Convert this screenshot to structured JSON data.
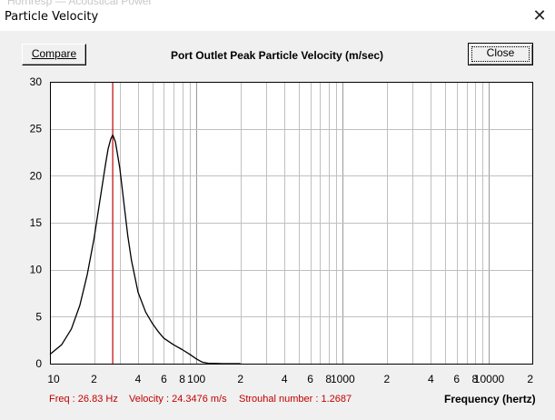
{
  "window": {
    "title": "Particle Velocity",
    "background_title": "Hornresp — Acoustical Power",
    "close_glyph": "✕"
  },
  "toolbar": {
    "compare_label": "Compare",
    "close_label": "Close"
  },
  "status": {
    "freq": "Freq : 26.83 Hz",
    "velocity": "Velocity : 24.3476 m/s",
    "strouhal": "Strouhal number : 1.2687"
  },
  "colors": {
    "cursor": "#c00000",
    "curve": "#000000",
    "grid": "#c0c0c0",
    "status_text": "#c00000"
  },
  "chart_data": {
    "type": "line",
    "title": "Port Outlet Peak Particle Velocity (m/sec)",
    "xlabel": "Frequency (hertz)",
    "ylabel": "",
    "xscale": "log",
    "xlim": [
      10,
      20000
    ],
    "ylim": [
      0,
      30
    ],
    "yticks": [
      "0",
      "5",
      "10",
      "15",
      "20",
      "25",
      "30"
    ],
    "xticks": [
      {
        "v": 10,
        "label": "10"
      },
      {
        "v": 20,
        "label": "2"
      },
      {
        "v": 40,
        "label": "4"
      },
      {
        "v": 60,
        "label": "6"
      },
      {
        "v": 80,
        "label": "8"
      },
      {
        "v": 100,
        "label": "100"
      },
      {
        "v": 200,
        "label": "2"
      },
      {
        "v": 400,
        "label": "4"
      },
      {
        "v": 600,
        "label": "6"
      },
      {
        "v": 800,
        "label": "8"
      },
      {
        "v": 1000,
        "label": "1000"
      },
      {
        "v": 2000,
        "label": "2"
      },
      {
        "v": 4000,
        "label": "4"
      },
      {
        "v": 6000,
        "label": "6"
      },
      {
        "v": 8000,
        "label": "8"
      },
      {
        "v": 10000,
        "label": "10000"
      },
      {
        "v": 20000,
        "label": "2"
      }
    ],
    "grid": true,
    "cursor_x": 26.83,
    "series": [
      {
        "x": [
          10,
          12,
          14,
          16,
          18,
          20,
          22,
          24,
          25,
          26,
          26.83,
          28,
          30,
          32,
          34,
          36,
          40,
          45,
          50,
          55,
          60,
          70,
          80,
          90,
          100,
          110,
          120,
          150,
          200
        ],
        "y": [
          1.0,
          2.0,
          3.7,
          6.2,
          9.5,
          13.3,
          17.5,
          21.3,
          22.9,
          23.9,
          24.35,
          23.6,
          20.8,
          17.1,
          13.6,
          11.0,
          7.6,
          5.5,
          4.3,
          3.4,
          2.7,
          2.0,
          1.5,
          1.0,
          0.5,
          0.15,
          0.05,
          0,
          0
        ]
      }
    ]
  }
}
